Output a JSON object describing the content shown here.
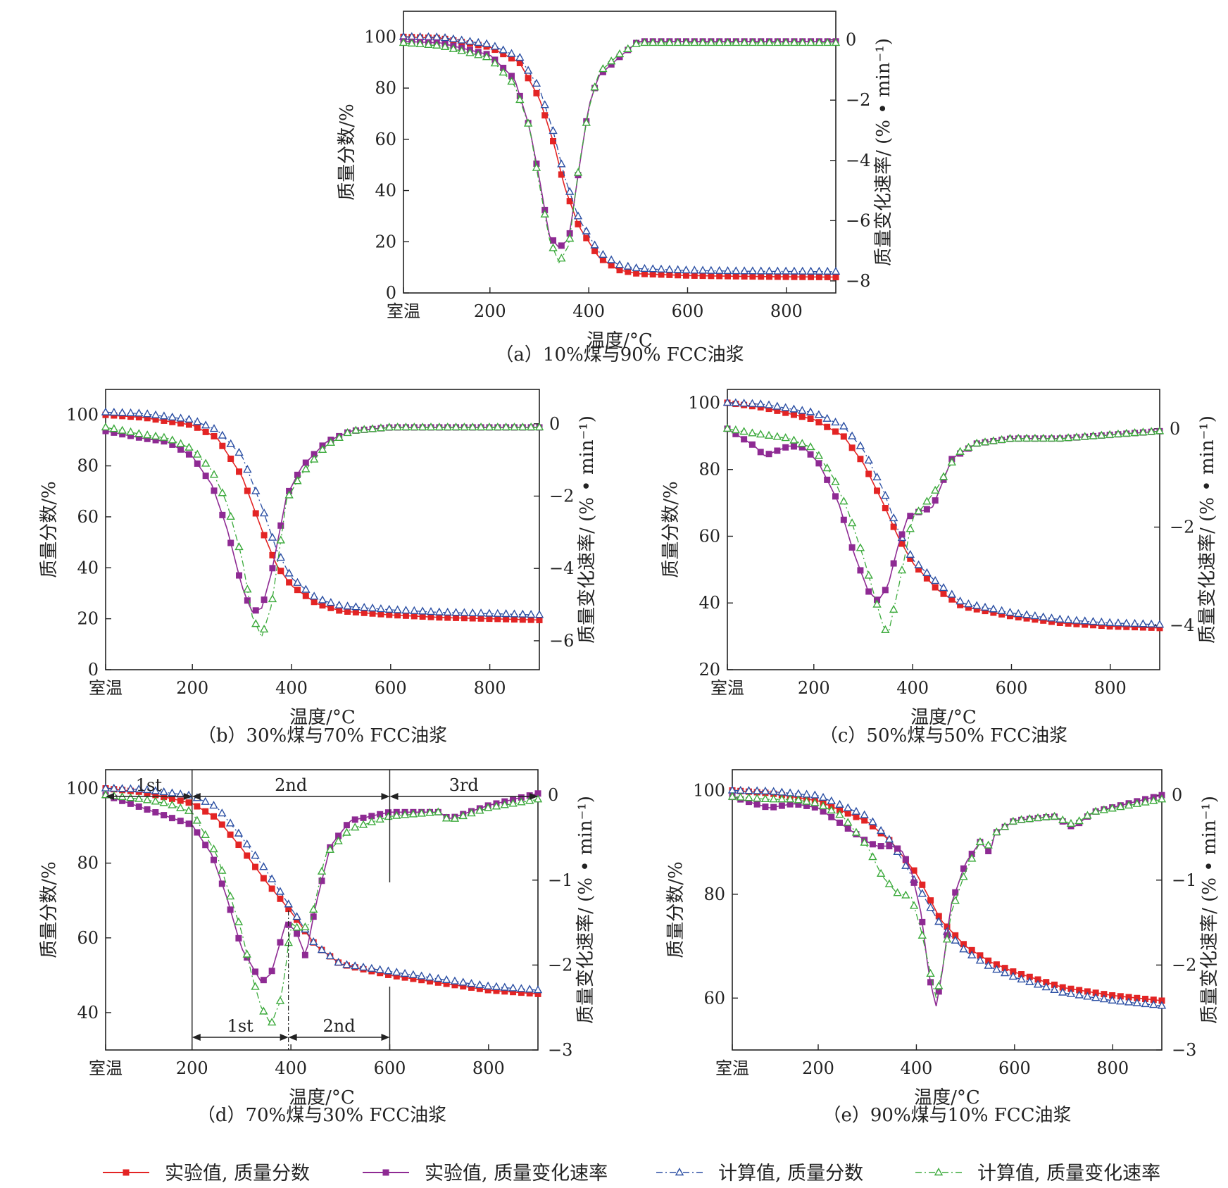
{
  "colors": {
    "exp_mass": "#e32424",
    "exp_rate": "#8e2a93",
    "calc_mass": "#2b4fa3",
    "calc_rate": "#3caa3c",
    "axis": "#222222"
  },
  "legend": [
    {
      "key": "exp_mass",
      "label": "实验值, 质量分数",
      "marker": "square",
      "dash": "solid"
    },
    {
      "key": "exp_rate",
      "label": "实验值, 质量变化速率",
      "marker": "square",
      "dash": "solid"
    },
    {
      "key": "calc_mass",
      "label": "计算值, 质量分数",
      "marker": "triangle",
      "dash": "dashdot"
    },
    {
      "key": "calc_rate",
      "label": "计算值, 质量变化速率",
      "marker": "triangle",
      "dash": "dashdot"
    }
  ],
  "chart_data": [
    {
      "id": "a",
      "type": "line",
      "caption": "（a）10%煤与90% FCC油浆",
      "xlabel": "温度/°C",
      "ylabel": "质量分数/%",
      "y2label": "质量变化速率/ (% • min⁻¹)",
      "xlim": [
        25,
        900
      ],
      "ylim": [
        0,
        110
      ],
      "y2lim": [
        -8.4,
        0.95
      ],
      "xticks": [
        {
          "v": 25,
          "label": "室温"
        },
        {
          "v": 200,
          "label": "200"
        },
        {
          "v": 400,
          "label": "400"
        },
        {
          "v": 600,
          "label": "600"
        },
        {
          "v": 800,
          "label": "800"
        }
      ],
      "yticks": [
        0,
        20,
        40,
        60,
        80,
        100
      ],
      "y2ticks": [
        0,
        -2,
        -4,
        -6,
        -8
      ],
      "series": [
        {
          "key": "exp_mass",
          "axis": "left",
          "x": [
            25,
            100,
            200,
            260,
            300,
            330,
            350,
            380,
            420,
            460,
            500,
            600,
            700,
            800,
            900
          ],
          "y": [
            100,
            99.5,
            96,
            90,
            76,
            58,
            42,
            26,
            14,
            9,
            7.5,
            6.8,
            6.5,
            6.3,
            6.2
          ]
        },
        {
          "key": "calc_mass",
          "axis": "left",
          "x": [
            25,
            100,
            200,
            260,
            300,
            330,
            350,
            380,
            420,
            460,
            500,
            600,
            700,
            800,
            900
          ],
          "y": [
            100,
            99.8,
            97,
            92,
            80,
            62,
            46,
            29,
            16,
            11,
            9.5,
            8.8,
            8.5,
            8.4,
            8.3
          ]
        },
        {
          "key": "exp_rate",
          "axis": "right",
          "x": [
            25,
            100,
            200,
            250,
            280,
            300,
            320,
            340,
            360,
            380,
            400,
            420,
            460,
            500,
            600,
            900
          ],
          "y": [
            -0.05,
            -0.1,
            -0.5,
            -1.3,
            -2.9,
            -4.6,
            -6.5,
            -6.9,
            -6.6,
            -4.3,
            -2.2,
            -1.2,
            -0.6,
            -0.05,
            -0.05,
            -0.05
          ]
        },
        {
          "key": "calc_rate",
          "axis": "right",
          "x": [
            25,
            100,
            200,
            250,
            280,
            300,
            320,
            340,
            360,
            380,
            400,
            420,
            460,
            500,
            600,
            900
          ],
          "y": [
            -0.1,
            -0.2,
            -0.6,
            -1.5,
            -2.9,
            -4.8,
            -6.6,
            -7.4,
            -6.8,
            -4.2,
            -2.3,
            -1.1,
            -0.5,
            -0.1,
            -0.1,
            -0.1
          ]
        }
      ]
    },
    {
      "id": "b",
      "type": "line",
      "caption": "（b）30%煤与70% FCC油浆",
      "xlabel": "温度/°C",
      "ylabel": "质量分数/%",
      "y2label": "质量变化速率/ (% • min⁻¹)",
      "xlim": [
        25,
        900
      ],
      "ylim": [
        0,
        110
      ],
      "y2lim": [
        -6.8,
        0.95
      ],
      "xticks": [
        {
          "v": 25,
          "label": "室温"
        },
        {
          "v": 200,
          "label": "200"
        },
        {
          "v": 400,
          "label": "400"
        },
        {
          "v": 600,
          "label": "600"
        },
        {
          "v": 800,
          "label": "800"
        }
      ],
      "yticks": [
        0,
        20,
        40,
        60,
        80,
        100
      ],
      "y2ticks": [
        0,
        -2,
        -4,
        -6
      ],
      "series": [
        {
          "key": "exp_mass",
          "axis": "left",
          "x": [
            25,
            100,
            200,
            250,
            300,
            340,
            370,
            400,
            450,
            500,
            600,
            700,
            800,
            900
          ],
          "y": [
            100,
            99,
            96,
            91,
            76,
            55,
            41,
            33,
            26,
            23,
            21.5,
            20.5,
            20,
            19.5
          ]
        },
        {
          "key": "calc_mass",
          "axis": "left",
          "x": [
            25,
            100,
            200,
            250,
            300,
            340,
            370,
            400,
            450,
            500,
            600,
            700,
            800,
            900
          ],
          "y": [
            101,
            100.5,
            98,
            94,
            84,
            64,
            47,
            36,
            28,
            25,
            23.5,
            22.5,
            22,
            21.5
          ]
        },
        {
          "key": "exp_rate",
          "axis": "right",
          "x": [
            25,
            100,
            150,
            200,
            240,
            270,
            300,
            320,
            340,
            360,
            390,
            420,
            470,
            520,
            600,
            700,
            900
          ],
          "y": [
            -0.2,
            -0.4,
            -0.5,
            -0.9,
            -1.7,
            -2.9,
            -4.5,
            -5.2,
            -5.1,
            -4.1,
            -2.0,
            -1.2,
            -0.5,
            -0.2,
            -0.1,
            -0.1,
            -0.1
          ]
        },
        {
          "key": "calc_rate",
          "axis": "right",
          "x": [
            25,
            100,
            150,
            200,
            240,
            270,
            300,
            320,
            340,
            360,
            390,
            420,
            470,
            520,
            600,
            700,
            900
          ],
          "y": [
            -0.1,
            -0.3,
            -0.4,
            -0.7,
            -1.3,
            -2.2,
            -3.7,
            -5.3,
            -5.9,
            -5.0,
            -2.1,
            -1.4,
            -0.6,
            -0.2,
            -0.1,
            -0.1,
            -0.1
          ]
        }
      ]
    },
    {
      "id": "c",
      "type": "line",
      "caption": "（c）50%煤与50% FCC油浆",
      "xlabel": "温度/°C",
      "ylabel": "质量分数/%",
      "y2label": "质量变化速率/ (% • min⁻¹)",
      "xlim": [
        25,
        900
      ],
      "ylim": [
        20,
        104
      ],
      "y2lim": [
        -4.9,
        0.8
      ],
      "xticks": [
        {
          "v": 25,
          "label": "室温"
        },
        {
          "v": 200,
          "label": "200"
        },
        {
          "v": 400,
          "label": "400"
        },
        {
          "v": 600,
          "label": "600"
        },
        {
          "v": 800,
          "label": "800"
        }
      ],
      "yticks": [
        20,
        40,
        60,
        80,
        100
      ],
      "y2ticks": [
        0,
        -2,
        -4
      ],
      "series": [
        {
          "key": "exp_mass",
          "axis": "left",
          "x": [
            25,
            100,
            200,
            260,
            300,
            340,
            370,
            400,
            450,
            500,
            600,
            700,
            800,
            900
          ],
          "y": [
            100,
            98.5,
            95,
            90,
            82,
            70,
            60,
            52,
            44,
            39,
            36,
            34,
            33,
            32.5
          ]
        },
        {
          "key": "calc_mass",
          "axis": "left",
          "x": [
            25,
            100,
            200,
            260,
            300,
            340,
            370,
            400,
            450,
            500,
            600,
            700,
            800,
            900
          ],
          "y": [
            100,
            99.5,
            97,
            93,
            86,
            74,
            62,
            53,
            46,
            40,
            37,
            35,
            34,
            33.5
          ]
        },
        {
          "key": "exp_rate",
          "axis": "right",
          "x": [
            25,
            80,
            100,
            150,
            180,
            210,
            250,
            280,
            310,
            330,
            350,
            370,
            390,
            410,
            440,
            480,
            530,
            600,
            700,
            900
          ],
          "y": [
            0,
            -0.35,
            -0.55,
            -0.35,
            -0.38,
            -0.7,
            -1.5,
            -2.5,
            -3.3,
            -3.5,
            -3.2,
            -2.4,
            -1.8,
            -1.7,
            -1.6,
            -0.6,
            -0.3,
            -0.2,
            -0.2,
            -0.05
          ]
        },
        {
          "key": "calc_rate",
          "axis": "right",
          "x": [
            25,
            80,
            150,
            200,
            240,
            270,
            300,
            320,
            340,
            350,
            370,
            400,
            420,
            450,
            490,
            530,
            600,
            700,
            900
          ],
          "y": [
            0,
            -0.1,
            -0.2,
            -0.4,
            -1.0,
            -1.7,
            -2.6,
            -3.3,
            -4.0,
            -4.2,
            -3.3,
            -1.8,
            -1.6,
            -1.2,
            -0.5,
            -0.3,
            -0.2,
            -0.2,
            -0.05
          ]
        }
      ]
    },
    {
      "id": "d",
      "type": "line",
      "caption": "（d）70%煤与30% FCC油浆",
      "xlabel": "温度/°C",
      "ylabel": "质量分数/%",
      "y2label": "质量变化速率/ (% • min⁻¹)",
      "xlim": [
        25,
        900
      ],
      "ylim": [
        30,
        105
      ],
      "y2lim": [
        -3.0,
        0.3
      ],
      "xticks": [
        {
          "v": 25,
          "label": "室温"
        },
        {
          "v": 200,
          "label": "200"
        },
        {
          "v": 400,
          "label": "400"
        },
        {
          "v": 600,
          "label": "600"
        },
        {
          "v": 800,
          "label": "800"
        }
      ],
      "yticks": [
        40,
        60,
        80,
        100
      ],
      "y2ticks": [
        0,
        -1,
        -2,
        -3
      ],
      "series": [
        {
          "key": "exp_mass",
          "axis": "left",
          "x": [
            25,
            100,
            200,
            250,
            300,
            350,
            400,
            450,
            500,
            600,
            700,
            800,
            900
          ],
          "y": [
            100,
            99,
            96,
            92,
            84,
            75,
            67,
            58,
            53,
            50,
            48,
            46,
            45
          ]
        },
        {
          "key": "calc_mass",
          "axis": "left",
          "x": [
            25,
            100,
            200,
            250,
            300,
            350,
            400,
            450,
            500,
            600,
            700,
            800,
            900
          ],
          "y": [
            100,
            99.7,
            98,
            95,
            87,
            78,
            68,
            58,
            53,
            51,
            49,
            47,
            46
          ]
        },
        {
          "key": "exp_rate",
          "axis": "right",
          "x": [
            25,
            100,
            150,
            200,
            240,
            270,
            300,
            320,
            340,
            360,
            390,
            410,
            430,
            450,
            480,
            520,
            600,
            700,
            720,
            800,
            900
          ],
          "y": [
            0,
            -0.15,
            -0.25,
            -0.35,
            -0.7,
            -1.2,
            -1.8,
            -2.0,
            -2.2,
            -2.1,
            -1.5,
            -1.6,
            -1.9,
            -1.3,
            -0.6,
            -0.3,
            -0.2,
            -0.2,
            -0.28,
            -0.12,
            0.02
          ]
        },
        {
          "key": "calc_rate",
          "axis": "right",
          "x": [
            25,
            100,
            150,
            200,
            250,
            300,
            320,
            340,
            360,
            380,
            390,
            400,
            420,
            440,
            470,
            520,
            600,
            700,
            720,
            800,
            900
          ],
          "y": [
            0,
            -0.05,
            -0.1,
            -0.2,
            -0.7,
            -1.6,
            -2.1,
            -2.5,
            -2.7,
            -2.4,
            -2.0,
            -1.5,
            -1.6,
            -1.5,
            -0.7,
            -0.4,
            -0.25,
            -0.2,
            -0.3,
            -0.15,
            -0.05
          ]
        }
      ],
      "stages_top": [
        {
          "from": 25,
          "to": 200,
          "label": "1st"
        },
        {
          "from": 200,
          "to": 600,
          "label": "2nd"
        },
        {
          "from": 600,
          "to": 900,
          "label": "3rd"
        }
      ],
      "stages_bottom": [
        {
          "from": 200,
          "to": 395,
          "label": "1st"
        },
        {
          "from": 395,
          "to": 600,
          "label": "2nd"
        }
      ]
    },
    {
      "id": "e",
      "type": "line",
      "caption": "（e）90%煤与10% FCC油浆",
      "xlabel": "温度/°C",
      "ylabel": "质量分数/%",
      "y2label": "质量变化速率/ (% • min⁻¹)",
      "xlim": [
        25,
        900
      ],
      "ylim": [
        50,
        104
      ],
      "y2lim": [
        -3.0,
        0.3
      ],
      "xticks": [
        {
          "v": 25,
          "label": "室温"
        },
        {
          "v": 200,
          "label": "200"
        },
        {
          "v": 400,
          "label": "400"
        },
        {
          "v": 600,
          "label": "600"
        },
        {
          "v": 800,
          "label": "800"
        }
      ],
      "yticks": [
        60,
        80,
        100
      ],
      "y2ticks": [
        0,
        -1,
        -2,
        -3
      ],
      "series": [
        {
          "key": "exp_mass",
          "axis": "left",
          "x": [
            25,
            100,
            200,
            300,
            350,
            400,
            450,
            500,
            550,
            600,
            700,
            800,
            900
          ],
          "y": [
            100,
            99.5,
            98,
            94,
            90,
            84,
            75,
            70,
            67,
            65,
            62,
            60.5,
            59.5
          ]
        },
        {
          "key": "calc_mass",
          "axis": "left",
          "x": [
            25,
            100,
            200,
            300,
            350,
            400,
            450,
            500,
            550,
            600,
            700,
            800,
            900
          ],
          "y": [
            100,
            99.8,
            99,
            95,
            90,
            82,
            74,
            69,
            66,
            64,
            61,
            59.5,
            58.5
          ]
        },
        {
          "key": "exp_rate",
          "axis": "right",
          "x": [
            25,
            100,
            150,
            200,
            250,
            300,
            320,
            350,
            370,
            390,
            410,
            425,
            440,
            455,
            470,
            500,
            530,
            550,
            560,
            600,
            680,
            720,
            760,
            900
          ],
          "y": [
            -0.02,
            -0.15,
            -0.1,
            -0.15,
            -0.35,
            -0.55,
            -0.6,
            -0.6,
            -0.65,
            -0.9,
            -1.4,
            -2.1,
            -2.5,
            -2.0,
            -1.3,
            -0.8,
            -0.55,
            -0.68,
            -0.45,
            -0.3,
            -0.25,
            -0.38,
            -0.2,
            0.0
          ]
        },
        {
          "key": "calc_rate",
          "axis": "right",
          "x": [
            25,
            100,
            150,
            200,
            250,
            300,
            330,
            360,
            390,
            410,
            425,
            440,
            455,
            470,
            500,
            530,
            550,
            560,
            600,
            680,
            720,
            760,
            900
          ],
          "y": [
            -0.02,
            -0.05,
            -0.05,
            -0.1,
            -0.25,
            -0.6,
            -0.95,
            -1.15,
            -1.2,
            -1.6,
            -2.0,
            -2.4,
            -2.0,
            -1.4,
            -0.9,
            -0.55,
            -0.6,
            -0.45,
            -0.3,
            -0.25,
            -0.35,
            -0.2,
            -0.05
          ]
        }
      ]
    }
  ]
}
